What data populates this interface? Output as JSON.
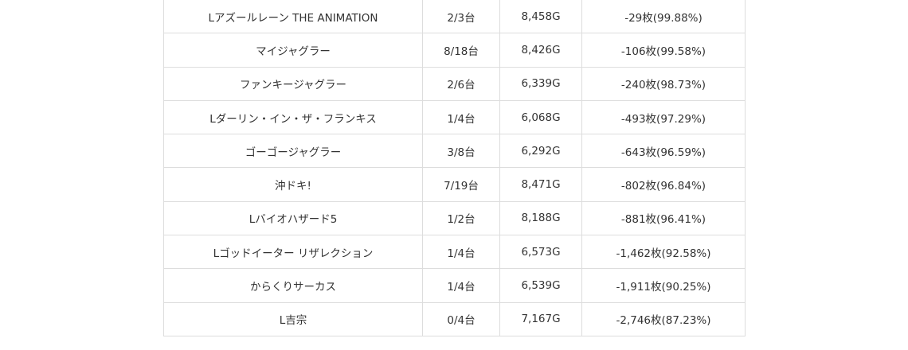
{
  "rows": [
    {
      "machine": "Lアズールレーン THE ANIMATION",
      "win_rate": "2/3台",
      "games": "8,458G",
      "diff": "-29枚(99.88%)"
    },
    {
      "machine": "マイジャグラー",
      "win_rate": "8/18台",
      "games": "8,426G",
      "diff": "-106枚(99.58%)"
    },
    {
      "machine": "ファンキージャグラー",
      "win_rate": "2/6台",
      "games": "6,339G",
      "diff": "-240枚(98.73%)"
    },
    {
      "machine": "Lダーリン・イン・ザ・フランキス",
      "win_rate": "1/4台",
      "games": "6,068G",
      "diff": "-493枚(97.29%)"
    },
    {
      "machine": "ゴーゴージャグラー",
      "win_rate": "3/8台",
      "games": "6,292G",
      "diff": "-643枚(96.59%)"
    },
    {
      "machine": "沖ドキ!",
      "win_rate": "7/19台",
      "games": "8,471G",
      "diff": "-802枚(96.84%)"
    },
    {
      "machine": "Lバイオハザード5",
      "win_rate": "1/2台",
      "games": "8,188G",
      "diff": "-881枚(96.41%)"
    },
    {
      "machine": "Lゴッドイーター リザレクション",
      "win_rate": "1/4台",
      "games": "6,573G",
      "diff": "-1,462枚(92.58%)"
    },
    {
      "machine": "からくりサーカス",
      "win_rate": "1/4台",
      "games": "6,539G",
      "diff": "-1,911枚(90.25%)"
    },
    {
      "machine": "L吉宗",
      "win_rate": "0/4台",
      "games": "7,167G",
      "diff": "-2,746枚(87.23%)"
    }
  ]
}
